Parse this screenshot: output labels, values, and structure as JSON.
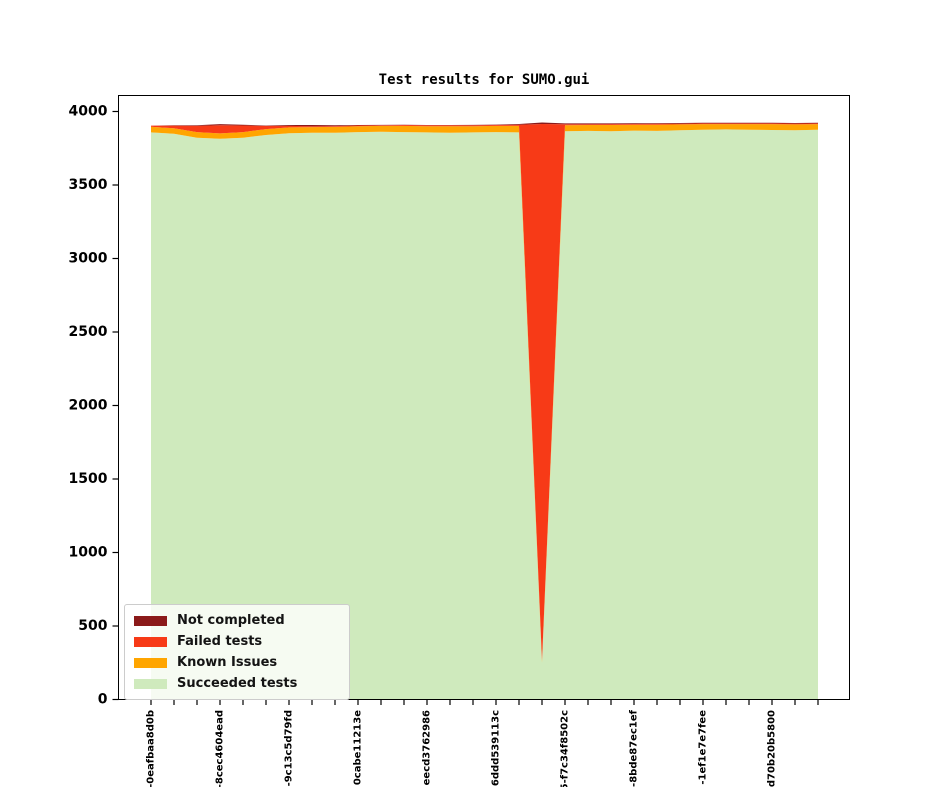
{
  "figure": {
    "title": "Test results for SUMO.gui"
  },
  "chart_data": {
    "type": "area",
    "stacked": true,
    "title": "Test results for SUMO.gui",
    "xlabel": "",
    "ylabel": "",
    "grid": false,
    "legend_position": "lower left",
    "ylim": [
      0,
      4100
    ],
    "yticks": [
      0,
      500,
      1000,
      1500,
      2000,
      2500,
      3000,
      3500,
      4000
    ],
    "x_tick_count": 30,
    "x_label_every": 3,
    "x_tick_labels": [
      "-0eafbaa8d0b",
      "-8cec4604ead",
      "-9c13c5d79fd",
      "0cabe11213e",
      "eecd3762986",
      "6ddd539113c",
      "5-f7c34f8502c",
      "-8bde87ec1ef",
      "-1ef1e7e7fee",
      "d70b20b5800"
    ],
    "series": [
      {
        "name": "Succeeded tests",
        "color": "#cfeabd",
        "values": [
          3858,
          3848,
          3822,
          3815,
          3822,
          3840,
          3852,
          3856,
          3855,
          3860,
          3862,
          3860,
          3858,
          3856,
          3858,
          3860,
          3858,
          250,
          3865,
          3868,
          3866,
          3870,
          3868,
          3872,
          3876,
          3878,
          3876,
          3874,
          3872,
          3876
        ]
      },
      {
        "name": "Known Issues",
        "color": "#ffa500",
        "values": [
          38,
          38,
          38,
          36,
          38,
          40,
          40,
          38,
          40,
          40,
          40,
          42,
          42,
          44,
          42,
          42,
          44,
          15,
          42,
          40,
          42,
          40,
          42,
          40,
          38,
          36,
          38,
          40,
          40,
          38
        ]
      },
      {
        "name": "Failed tests",
        "color": "#f73a17",
        "values": [
          8,
          18,
          42,
          55,
          45,
          22,
          10,
          6,
          6,
          5,
          5,
          6,
          6,
          6,
          6,
          6,
          8,
          3650,
          6,
          5,
          6,
          5,
          6,
          5,
          5,
          5,
          5,
          5,
          6,
          5
        ]
      },
      {
        "name": "Not completed",
        "color": "#8b1a1a",
        "values": [
          0,
          2,
          5,
          8,
          5,
          3,
          6,
          8,
          5,
          3,
          2,
          2,
          2,
          2,
          3,
          3,
          5,
          10,
          6,
          6,
          5,
          5,
          5,
          5,
          4,
          4,
          4,
          4,
          4,
          4
        ]
      }
    ],
    "legend_order_top_to_bottom": [
      "Not completed",
      "Failed tests",
      "Known Issues",
      "Succeeded tests"
    ]
  },
  "colors": {
    "axis": "#000000",
    "tick_text": "#000000",
    "background": "#ffffff"
  }
}
